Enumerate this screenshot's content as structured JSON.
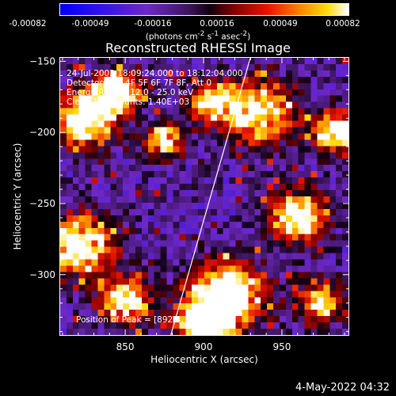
{
  "colorbar": {
    "ticks": [
      "-0.00082",
      "-0.00049",
      "-0.00016",
      "0.00016",
      "0.00049",
      "0.00082"
    ],
    "units_html": "(photons cm<sup>-2</sup> s<sup>-1</sup> asec<sup>-2</sup>)",
    "min": -0.00082,
    "max": 0.00082
  },
  "title": "Reconstructed RHESSI Image",
  "info": {
    "time": "24-Jul-2003 18:09:24.000 to 18:12:04.000",
    "detectors": "Detectors: 3F 4F 5F 6F 7F 8F, Att 0",
    "energy": "Energy Range: 12.0 - 25.0 keV",
    "clean": "Clean     Total counts: 1.40E+03"
  },
  "peak": "Position of Peak = [892.4, -334.5]",
  "footer": {
    "timestamp": "4-May-2022 04:32"
  },
  "chart_data": {
    "type": "heatmap",
    "title": "Reconstructed RHESSI Image",
    "xlabel": "Heliocentric X (arcsec)",
    "ylabel": "Heliocentric Y (arcsec)",
    "xlim": [
      808,
      993
    ],
    "ylim": [
      -343,
      -147
    ],
    "xticks": [
      850,
      900,
      950
    ],
    "yticks": [
      -300,
      -250,
      -200,
      -150
    ],
    "limb_line": {
      "x": [
        879,
        930
      ],
      "y": [
        -343,
        -147
      ]
    },
    "colorscale": "red-temperature",
    "peak_position": [
      892.4,
      -334.5
    ],
    "bright_regions": [
      {
        "x": 825,
        "y": -190,
        "r": 18,
        "level": 0.95
      },
      {
        "x": 845,
        "y": -170,
        "r": 14,
        "level": 0.9
      },
      {
        "x": 820,
        "y": -280,
        "r": 22,
        "level": 0.8
      },
      {
        "x": 850,
        "y": -320,
        "r": 16,
        "level": 0.75
      },
      {
        "x": 915,
        "y": -315,
        "r": 22,
        "level": 1.0
      },
      {
        "x": 900,
        "y": -335,
        "r": 16,
        "level": 1.0
      },
      {
        "x": 935,
        "y": -185,
        "r": 22,
        "level": 0.75
      },
      {
        "x": 960,
        "y": -260,
        "r": 18,
        "level": 0.8
      },
      {
        "x": 985,
        "y": -200,
        "r": 15,
        "level": 0.7
      },
      {
        "x": 905,
        "y": -180,
        "r": 14,
        "level": 0.65
      },
      {
        "x": 975,
        "y": -320,
        "r": 15,
        "level": 0.6
      },
      {
        "x": 875,
        "y": -205,
        "r": 12,
        "level": 0.7
      }
    ]
  }
}
